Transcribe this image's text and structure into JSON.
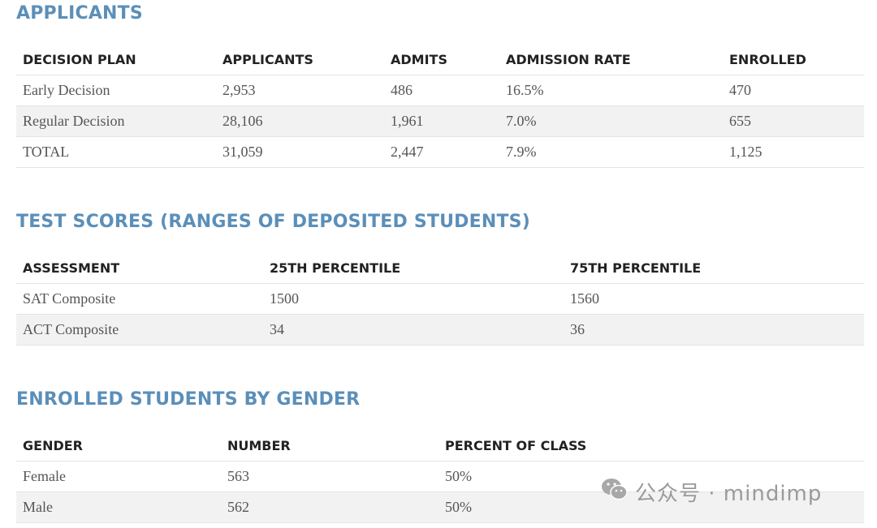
{
  "applicants": {
    "title": "APPLICANTS",
    "headers": [
      "DECISION PLAN",
      "APPLICANTS",
      "ADMITS",
      "ADMISSION RATE",
      "ENROLLED"
    ],
    "rows": [
      [
        "Early Decision",
        "2,953",
        "486",
        "16.5%",
        "470"
      ],
      [
        "Regular Decision",
        "28,106",
        "1,961",
        "7.0%",
        "655"
      ],
      [
        "TOTAL",
        "31,059",
        "2,447",
        "7.9%",
        "1,125"
      ]
    ]
  },
  "test_scores": {
    "title": "TEST SCORES (RANGES OF DEPOSITED STUDENTS)",
    "headers": [
      "ASSESSMENT",
      "25TH PERCENTILE",
      "75TH PERCENTILE"
    ],
    "rows": [
      [
        "SAT Composite",
        "1500",
        "1560"
      ],
      [
        "ACT Composite",
        "34",
        "36"
      ]
    ]
  },
  "gender": {
    "title": "ENROLLED STUDENTS BY GENDER",
    "headers": [
      "GENDER",
      "NUMBER",
      "PERCENT OF CLASS"
    ],
    "rows": [
      [
        "Female",
        "563",
        "50%"
      ],
      [
        "Male",
        "562",
        "50%"
      ]
    ]
  },
  "watermark": {
    "text": "公众号 · mindimp",
    "icon": "wechat-icon"
  }
}
